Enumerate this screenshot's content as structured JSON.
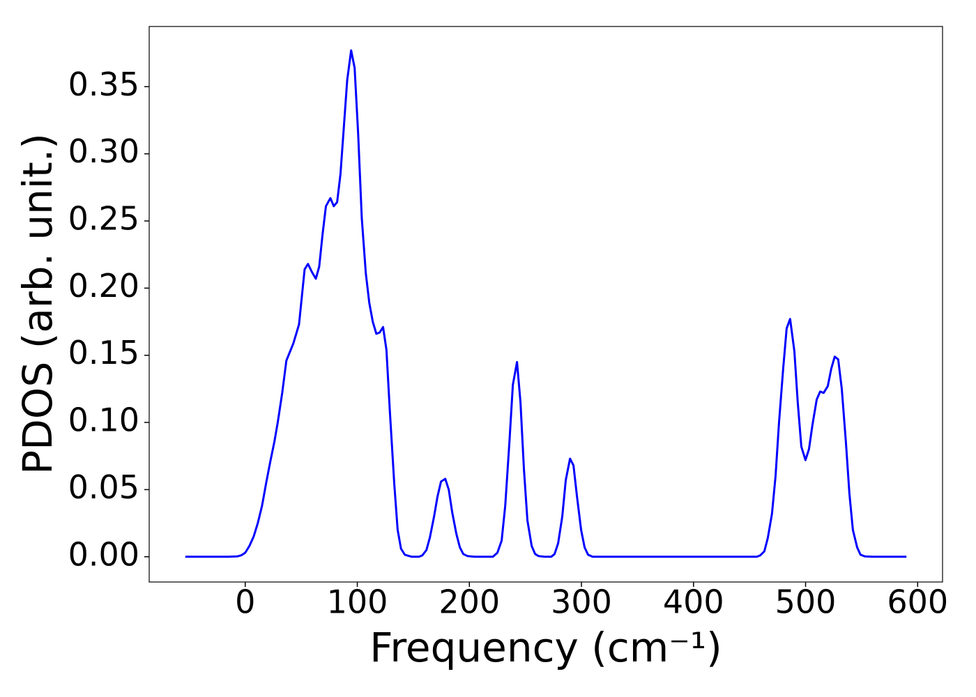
{
  "chart_data": {
    "type": "line",
    "x_label": "Frequency (cm⁻¹)",
    "y_label": "PDOS (arb. unit.)",
    "x": [
      -53.5,
      -45,
      -35,
      -25,
      -15,
      -7,
      -3.7,
      0,
      3.7,
      7.5,
      11.2,
      15,
      18.7,
      22.4,
      26.1,
      29,
      33,
      36.7,
      43,
      48,
      53,
      56,
      59.5,
      63,
      66,
      69,
      72,
      76,
      79,
      82,
      85,
      88,
      91,
      94.5,
      97.6,
      100.7,
      104,
      107.6,
      110.7,
      113.8,
      117,
      120,
      123,
      126,
      129,
      133,
      136,
      139,
      142.4,
      148.6,
      155,
      158,
      161.7,
      164.8,
      168.5,
      171.6,
      174.7,
      178.5,
      181.6,
      184.7,
      188.4,
      191.5,
      194.6,
      198.4,
      204.6,
      215,
      221,
      225,
      228.8,
      232,
      235.7,
      238.8,
      242.5,
      245.6,
      248.7,
      251.8,
      255.6,
      258.7,
      261.8,
      267,
      273,
      276,
      279.2,
      282.9,
      286,
      289.8,
      292.9,
      296,
      299.7,
      302.8,
      305.9,
      310,
      350,
      400,
      450,
      456.4,
      459.5,
      463.2,
      466.3,
      470,
      473.2,
      476.3,
      480,
      483.1,
      486.2,
      490,
      493,
      496.2,
      499.9,
      503,
      506.1,
      509.9,
      513,
      516.1,
      519.8,
      522.9,
      526,
      529.1,
      532.3,
      536,
      539.1,
      542.2,
      546,
      549,
      552.8,
      560,
      575,
      590
    ],
    "series": [
      {
        "name": "PDOS",
        "color": "#0000ff",
        "values": [
          0,
          0,
          0,
          0,
          0,
          0.0003,
          0.001,
          0.003,
          0.008,
          0.015,
          0.025,
          0.038,
          0.055,
          0.071,
          0.086,
          0.1,
          0.122,
          0.146,
          0.159,
          0.173,
          0.214,
          0.218,
          0.212,
          0.207,
          0.216,
          0.24,
          0.261,
          0.267,
          0.261,
          0.264,
          0.285,
          0.32,
          0.355,
          0.377,
          0.364,
          0.316,
          0.252,
          0.211,
          0.189,
          0.175,
          0.166,
          0.167,
          0.171,
          0.154,
          0.109,
          0.054,
          0.02,
          0.006,
          0.0015,
          0,
          0,
          0.001,
          0.005,
          0.0145,
          0.03,
          0.045,
          0.056,
          0.058,
          0.05,
          0.033,
          0.017,
          0.007,
          0.002,
          0.0005,
          0,
          0,
          0,
          0.003,
          0.012,
          0.038,
          0.085,
          0.128,
          0.145,
          0.115,
          0.065,
          0.027,
          0.008,
          0.002,
          0.0005,
          0,
          0,
          0.002,
          0.01,
          0.03,
          0.057,
          0.073,
          0.068,
          0.045,
          0.02,
          0.007,
          0.0015,
          0,
          0,
          0,
          0,
          0,
          0.001,
          0.004,
          0.014,
          0.032,
          0.06,
          0.1,
          0.14,
          0.17,
          0.177,
          0.153,
          0.115,
          0.082,
          0.072,
          0.08,
          0.098,
          0.117,
          0.123,
          0.122,
          0.127,
          0.14,
          0.149,
          0.147,
          0.125,
          0.085,
          0.047,
          0.02,
          0.007,
          0.0015,
          0.0003,
          0,
          0,
          0
        ]
      }
    ],
    "xlim": [
      -85.7,
      622.2
    ],
    "ylim": [
      -0.0188,
      0.3948
    ],
    "xticks": [
      0,
      100,
      200,
      300,
      400,
      500,
      600
    ],
    "yticks": [
      {
        "value": 0,
        "label": "0.00"
      },
      {
        "value": 0.05,
        "label": "0.05"
      },
      {
        "value": 0.1,
        "label": "0.10"
      },
      {
        "value": 0.15,
        "label": "0.15"
      },
      {
        "value": 0.2,
        "label": "0.20"
      },
      {
        "value": 0.25,
        "label": "0.25"
      },
      {
        "value": 0.3,
        "label": "0.30"
      },
      {
        "value": 0.35,
        "label": "0.35"
      }
    ],
    "grid": false
  }
}
